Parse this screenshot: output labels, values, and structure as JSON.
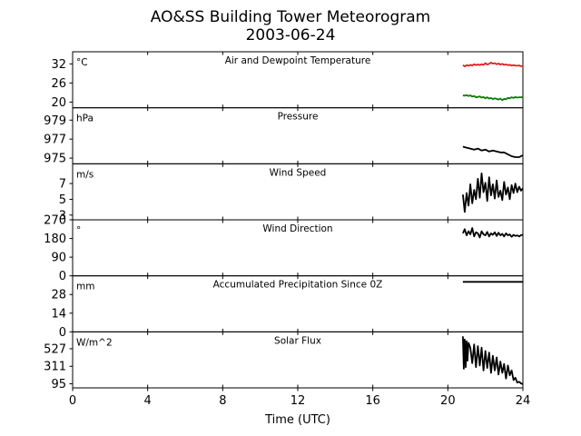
{
  "chart_data": {
    "type": "line",
    "title": "AO&SS Building Tower Meteorogram",
    "subtitle": "2003-06-24",
    "xlabel": "Time (UTC)",
    "xlim": [
      0,
      24
    ],
    "xticks": [
      0,
      4,
      8,
      12,
      16,
      20,
      24
    ],
    "grid": false,
    "panels": [
      {
        "title": "Air and Dewpoint Temperature",
        "unit": "°C",
        "ylim": [
          18.2,
          35.8
        ],
        "yticks": [
          20,
          26,
          32
        ],
        "series": [
          {
            "color": "#e31a1c",
            "x": [
              20.8,
              20.9,
              21.0,
              21.1,
              21.2,
              21.3,
              21.4,
              21.5,
              21.6,
              21.7,
              21.8,
              21.9,
              22.0,
              22.1,
              22.2,
              22.3,
              22.4,
              22.5,
              22.6,
              22.7,
              22.8,
              22.9,
              23.0,
              23.1,
              23.2,
              23.3,
              23.4,
              23.5,
              23.6,
              23.7,
              23.8,
              23.9,
              24.0
            ],
            "values": [
              31.6,
              31.2,
              31.6,
              31.4,
              31.7,
              31.5,
              31.9,
              31.6,
              31.8,
              31.6,
              31.9,
              31.7,
              32.2,
              31.8,
              32.0,
              32.4,
              32.1,
              32.2,
              31.9,
              32.1,
              31.8,
              32.0,
              31.7,
              31.8,
              31.6,
              31.7,
              31.5,
              31.6,
              31.5,
              31.4,
              31.5,
              31.3,
              31.3
            ]
          },
          {
            "color": "#008000",
            "x": [
              20.8,
              20.9,
              21.0,
              21.1,
              21.2,
              21.3,
              21.4,
              21.5,
              21.6,
              21.7,
              21.8,
              21.9,
              22.0,
              22.1,
              22.2,
              22.3,
              22.4,
              22.5,
              22.6,
              22.7,
              22.8,
              22.9,
              23.0,
              23.1,
              23.2,
              23.3,
              23.4,
              23.5,
              23.6,
              23.7,
              23.8,
              23.9,
              24.0
            ],
            "values": [
              22.1,
              22.0,
              22.2,
              21.9,
              22.1,
              21.7,
              21.9,
              21.5,
              21.6,
              21.8,
              21.4,
              21.6,
              21.2,
              21.5,
              21.1,
              21.3,
              20.9,
              21.2,
              21.0,
              20.8,
              21.1,
              20.6,
              21.0,
              20.9,
              21.3,
              21.2,
              21.5,
              21.3,
              21.6,
              21.4,
              21.5,
              21.5,
              21.6
            ]
          }
        ]
      },
      {
        "title": "Pressure",
        "unit": "hPa",
        "ylim": [
          974.4,
          980.3
        ],
        "yticks": [
          975,
          977,
          979
        ],
        "series": [
          {
            "color": "#000000",
            "x": [
              20.8,
              21.0,
              21.2,
              21.4,
              21.6,
              21.8,
              22.0,
              22.2,
              22.4,
              22.6,
              22.8,
              23.0,
              23.2,
              23.4,
              23.6,
              23.8,
              24.0
            ],
            "values": [
              976.2,
              976.1,
              976.0,
              975.9,
              976.0,
              975.8,
              975.9,
              975.7,
              975.8,
              975.7,
              975.6,
              975.6,
              975.4,
              975.2,
              975.1,
              975.1,
              975.3
            ]
          }
        ]
      },
      {
        "title": "Wind Speed",
        "unit": "m/s",
        "ylim": [
          2.4,
          9.5
        ],
        "yticks": [
          3,
          5,
          7
        ],
        "series": [
          {
            "color": "#000000",
            "x": [
              20.8,
              20.9,
              21.0,
              21.1,
              21.2,
              21.3,
              21.4,
              21.5,
              21.6,
              21.7,
              21.8,
              21.9,
              22.0,
              22.1,
              22.2,
              22.3,
              22.4,
              22.5,
              22.6,
              22.7,
              22.8,
              22.9,
              23.0,
              23.1,
              23.2,
              23.3,
              23.4,
              23.5,
              23.6,
              23.7,
              23.8,
              23.9,
              24.0
            ],
            "values": [
              5.6,
              3.4,
              5.8,
              4.2,
              6.9,
              4.5,
              6.2,
              5.0,
              7.6,
              5.2,
              8.3,
              5.9,
              7.1,
              4.8,
              7.8,
              5.5,
              6.9,
              5.1,
              7.4,
              5.3,
              6.1,
              4.9,
              7.2,
              5.6,
              6.5,
              5.0,
              6.8,
              5.8,
              7.0,
              5.9,
              6.6,
              6.1,
              6.4
            ]
          }
        ]
      },
      {
        "title": "Wind Direction",
        "unit": "°",
        "ylim": [
          0,
          270
        ],
        "yticks": [
          0,
          90,
          180,
          270
        ],
        "series": [
          {
            "color": "#000000",
            "x": [
              20.8,
              20.9,
              21.0,
              21.1,
              21.2,
              21.3,
              21.4,
              21.5,
              21.6,
              21.7,
              21.8,
              21.9,
              22.0,
              22.1,
              22.2,
              22.3,
              22.4,
              22.5,
              22.6,
              22.7,
              22.8,
              22.9,
              23.0,
              23.1,
              23.2,
              23.3,
              23.4,
              23.5,
              23.6,
              23.7,
              23.8,
              23.9,
              24.0
            ],
            "values": [
              205,
              225,
              195,
              215,
              200,
              230,
              190,
              210,
              205,
              185,
              215,
              200,
              195,
              212,
              190,
              205,
              198,
              210,
              192,
              208,
              195,
              202,
              190,
              205,
              195,
              200,
              188,
              198,
              192,
              195,
              190,
              196,
              198
            ]
          }
        ]
      },
      {
        "title": "Accumulated Precipitation Since 0Z",
        "unit": "mm",
        "ylim": [
          0,
          42
        ],
        "yticks": [
          0,
          14,
          28
        ],
        "series": [
          {
            "color": "#000000",
            "x": [
              20.8,
              24.0
            ],
            "values": [
              37.5,
              37.5
            ]
          }
        ]
      },
      {
        "title": "Solar Flux",
        "unit": "W/m^2",
        "ylim": [
          45,
          735
        ],
        "yticks": [
          95,
          311,
          527
        ],
        "series": [
          {
            "color": "#000000",
            "x": [
              20.8,
              20.85,
              20.9,
              20.95,
              21.0,
              21.05,
              21.1,
              21.2,
              21.3,
              21.4,
              21.5,
              21.6,
              21.7,
              21.8,
              21.9,
              22.0,
              22.1,
              22.2,
              22.3,
              22.4,
              22.5,
              22.6,
              22.7,
              22.8,
              22.9,
              23.0,
              23.1,
              23.2,
              23.3,
              23.4,
              23.5,
              23.6,
              23.7,
              23.8,
              23.9,
              24.0
            ],
            "values": [
              680,
              280,
              640,
              300,
              620,
              380,
              600,
              540,
              350,
              580,
              300,
              560,
              320,
              540,
              260,
              500,
              290,
              480,
              230,
              440,
              260,
              420,
              210,
              370,
              230,
              340,
              160,
              320,
              200,
              260,
              140,
              170,
              110,
              120,
              100,
              90
            ]
          }
        ]
      }
    ]
  }
}
